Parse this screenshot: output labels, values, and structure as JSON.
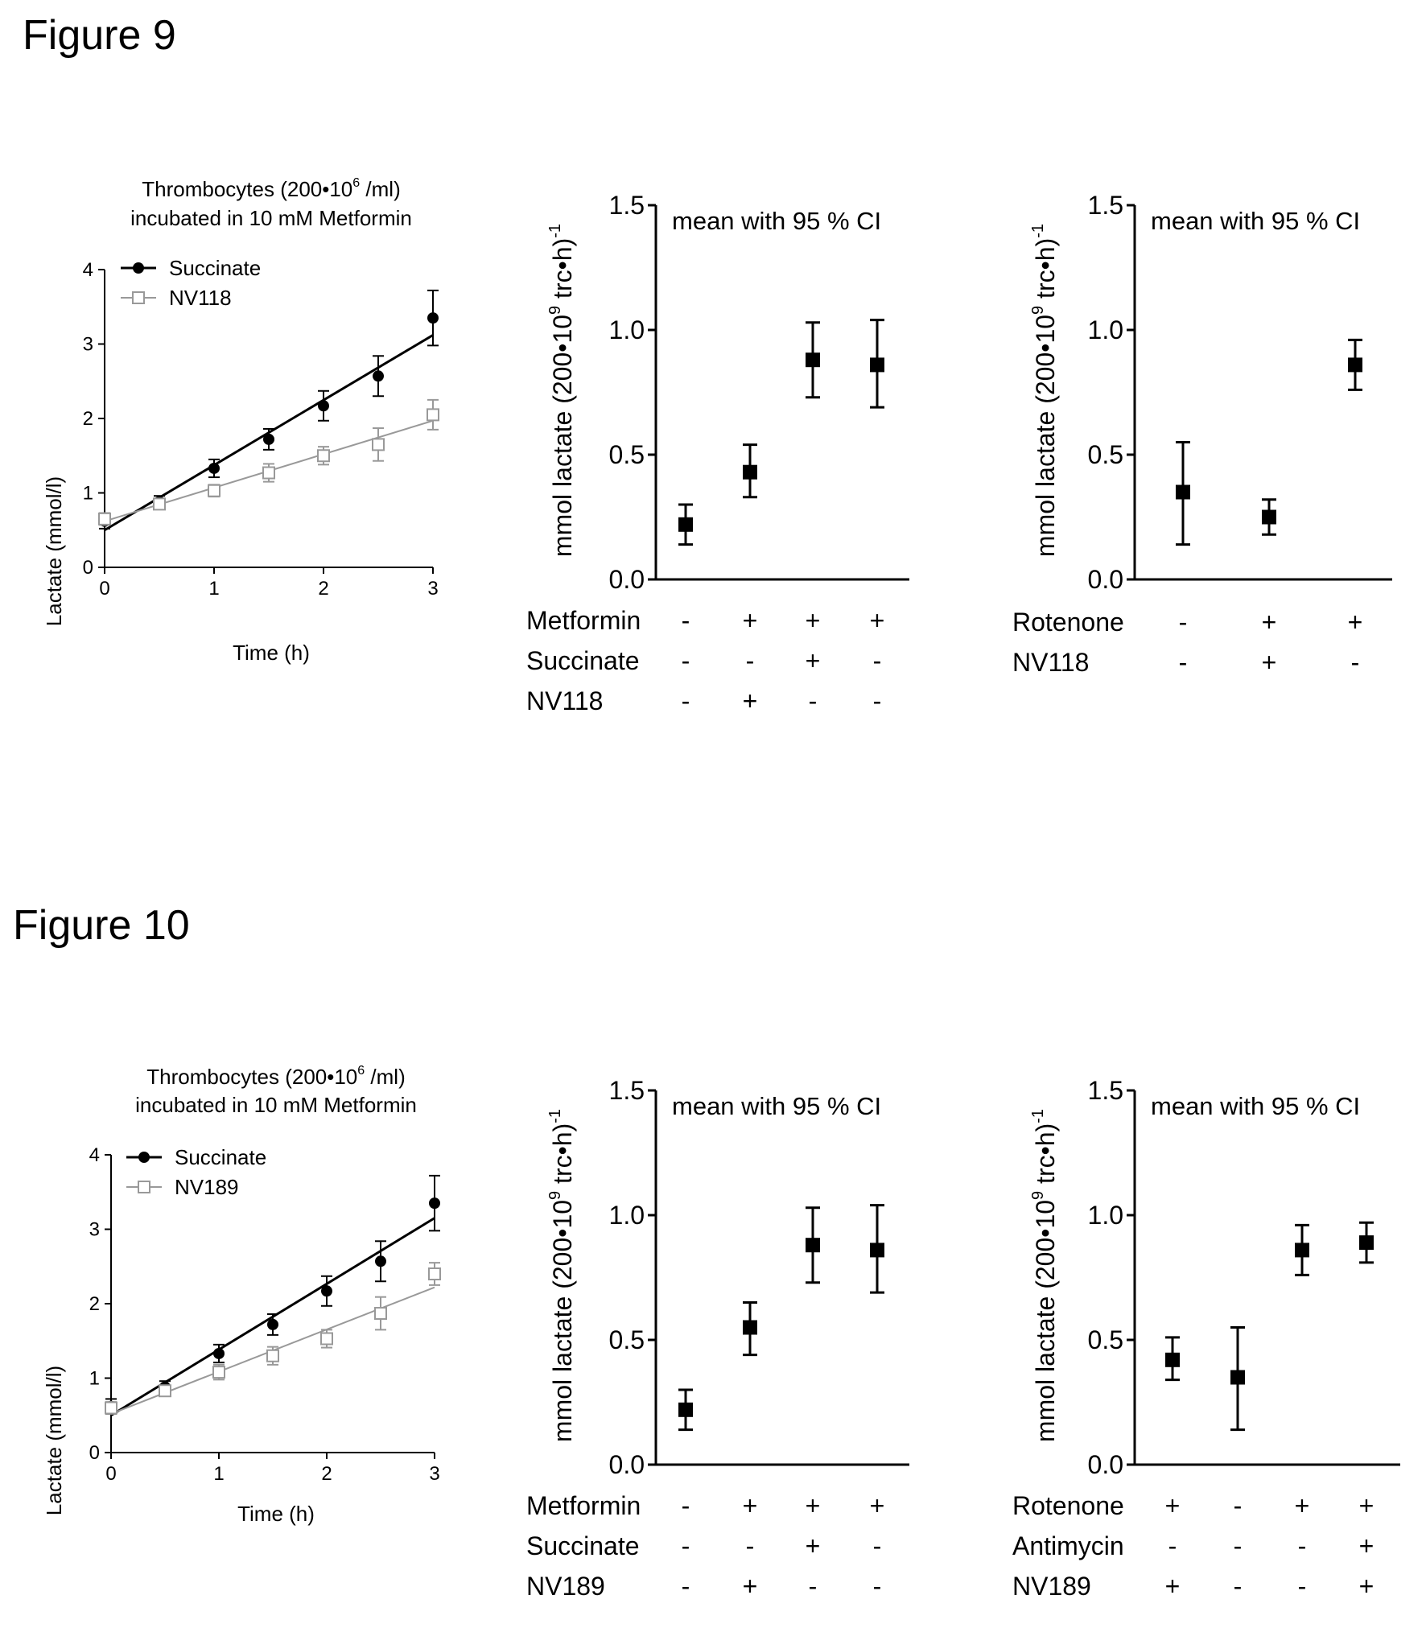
{
  "figures": [
    {
      "label": "Figure 9",
      "time_chart": {
        "title_line1": "Thrombocytes (200•10",
        "title_sup": "6",
        "title_rest": " /ml)",
        "title_line2": "incubated in 10 mM Metformin",
        "ylabel": "Lactate (mmol/l)",
        "xlabel": "Time (h)"
      }
    },
    {
      "label": "Figure 10",
      "time_chart": {
        "title_line1": "Thrombocytes (200•10",
        "title_sup": "6",
        "title_rest": " /ml)",
        "title_line2": "incubated in 10 mM Metformin",
        "ylabel": "Lactate (mmol/l)",
        "xlabel": "Time (h)"
      }
    }
  ],
  "common": {
    "annotation": "mean with 95 % CI",
    "rate_ylabel_main": "mmol lactate (200•10",
    "rate_ylabel_sup": "9",
    "rate_ylabel_mid": " trc•h)",
    "rate_ylabel_exp": "-1"
  },
  "chart_data": [
    {
      "id": "f9a",
      "type": "scatter",
      "x_ticks": [
        0,
        1,
        2,
        3
      ],
      "y_ticks": [
        0,
        1,
        2,
        3,
        4
      ],
      "xlim": [
        0,
        3
      ],
      "ylim": [
        0,
        4
      ],
      "series": [
        {
          "name": "Succinate",
          "marker": "filled-circle",
          "color": "#000000",
          "x": [
            0,
            0.5,
            1,
            1.5,
            2,
            2.5,
            3
          ],
          "y": [
            0.62,
            0.88,
            1.33,
            1.72,
            2.17,
            2.57,
            3.35
          ],
          "err": [
            0.1,
            0.08,
            0.12,
            0.14,
            0.2,
            0.27,
            0.37
          ],
          "fit": [
            [
              0,
              0.5
            ],
            [
              3,
              3.12
            ]
          ]
        },
        {
          "name": "NV118",
          "marker": "open-square",
          "color": "#999999",
          "x": [
            0,
            0.5,
            1,
            1.5,
            2,
            2.5,
            3
          ],
          "y": [
            0.65,
            0.85,
            1.03,
            1.27,
            1.5,
            1.65,
            2.05
          ],
          "err": [
            0.08,
            0.06,
            0.08,
            0.12,
            0.12,
            0.22,
            0.2
          ],
          "fit": [
            [
              0,
              0.62
            ],
            [
              3,
              1.97
            ]
          ]
        }
      ]
    },
    {
      "id": "f9b",
      "type": "scatter",
      "annotation": "mean with 95 % CI",
      "ylim": [
        0,
        1.5
      ],
      "y_ticks": [
        "0.0",
        "0.5",
        "1.0",
        "1.5"
      ],
      "means": [
        0.22,
        0.43,
        0.88,
        0.86
      ],
      "lower": [
        0.14,
        0.33,
        0.73,
        0.69
      ],
      "upper": [
        0.3,
        0.54,
        1.03,
        1.04
      ],
      "conditions": [
        {
          "name": "Metformin",
          "values": [
            "-",
            "+",
            "+",
            "+"
          ]
        },
        {
          "name": "Succinate",
          "values": [
            "-",
            "-",
            "+",
            "-"
          ]
        },
        {
          "name": "NV118",
          "values": [
            "-",
            "+",
            "-",
            "-"
          ]
        }
      ]
    },
    {
      "id": "f9c",
      "type": "scatter",
      "annotation": "mean with 95 % CI",
      "ylim": [
        0,
        1.5
      ],
      "y_ticks": [
        "0.0",
        "0.5",
        "1.0",
        "1.5"
      ],
      "means": [
        0.35,
        0.25,
        0.86
      ],
      "lower": [
        0.14,
        0.18,
        0.76
      ],
      "upper": [
        0.55,
        0.32,
        0.96
      ],
      "conditions": [
        {
          "name": "Rotenone",
          "values": [
            "-",
            "+",
            "+"
          ]
        },
        {
          "name": "NV118",
          "values": [
            "-",
            "+",
            "-"
          ]
        }
      ]
    },
    {
      "id": "f10a",
      "type": "scatter",
      "x_ticks": [
        0,
        1,
        2,
        3
      ],
      "y_ticks": [
        0,
        1,
        2,
        3,
        4
      ],
      "xlim": [
        0,
        3
      ],
      "ylim": [
        0,
        4
      ],
      "series": [
        {
          "name": "Succinate",
          "marker": "filled-circle",
          "color": "#000000",
          "x": [
            0,
            0.5,
            1,
            1.5,
            2,
            2.5,
            3
          ],
          "y": [
            0.62,
            0.88,
            1.33,
            1.72,
            2.17,
            2.57,
            3.35
          ],
          "err": [
            0.1,
            0.08,
            0.12,
            0.14,
            0.2,
            0.27,
            0.37
          ],
          "fit": [
            [
              0,
              0.5
            ],
            [
              3,
              3.15
            ]
          ]
        },
        {
          "name": "NV189",
          "marker": "open-square",
          "color": "#999999",
          "x": [
            0,
            0.5,
            1,
            1.5,
            2,
            2.5,
            3
          ],
          "y": [
            0.6,
            0.83,
            1.08,
            1.3,
            1.53,
            1.87,
            2.4
          ],
          "err": [
            0.08,
            0.07,
            0.1,
            0.12,
            0.12,
            0.22,
            0.15
          ],
          "fit": [
            [
              0,
              0.52
            ],
            [
              3,
              2.22
            ]
          ]
        }
      ]
    },
    {
      "id": "f10b",
      "type": "scatter",
      "annotation": "mean with 95 % CI",
      "ylim": [
        0,
        1.5
      ],
      "y_ticks": [
        "0.0",
        "0.5",
        "1.0",
        "1.5"
      ],
      "means": [
        0.22,
        0.55,
        0.88,
        0.86
      ],
      "lower": [
        0.14,
        0.44,
        0.73,
        0.69
      ],
      "upper": [
        0.3,
        0.65,
        1.03,
        1.04
      ],
      "conditions": [
        {
          "name": "Metformin",
          "values": [
            "-",
            "+",
            "+",
            "+"
          ]
        },
        {
          "name": "Succinate",
          "values": [
            "-",
            "-",
            "+",
            "-"
          ]
        },
        {
          "name": "NV189",
          "values": [
            "-",
            "+",
            "-",
            "-"
          ]
        }
      ]
    },
    {
      "id": "f10c",
      "type": "scatter",
      "annotation": "mean with 95 % CI",
      "ylim": [
        0,
        1.5
      ],
      "y_ticks": [
        "0.0",
        "0.5",
        "1.0",
        "1.5"
      ],
      "means": [
        0.42,
        0.35,
        0.86,
        0.89
      ],
      "lower": [
        0.34,
        0.14,
        0.76,
        0.81
      ],
      "upper": [
        0.51,
        0.55,
        0.96,
        0.97
      ],
      "conditions": [
        {
          "name": "Rotenone",
          "values": [
            "+",
            "-",
            "+",
            "+"
          ]
        },
        {
          "name": "Antimycin",
          "values": [
            "-",
            "-",
            "-",
            "+"
          ]
        },
        {
          "name": "NV189",
          "values": [
            "+",
            "-",
            "-",
            "+"
          ]
        }
      ]
    }
  ]
}
